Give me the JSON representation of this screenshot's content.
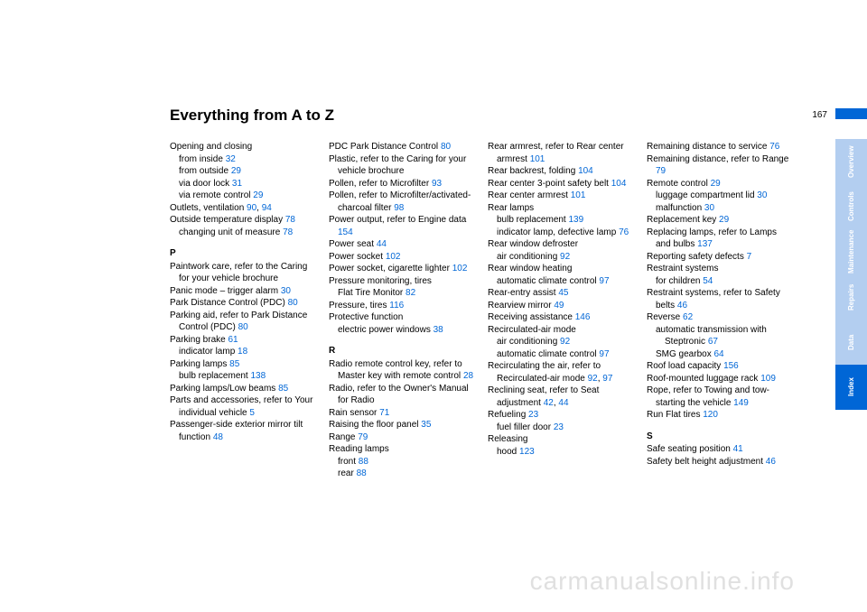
{
  "title": "Everything from A to Z",
  "page_number": "167",
  "watermark": "carmanualsonline.info",
  "link_color": "#0066d6",
  "tab_light": "#b3cef0",
  "tab_dark": "#0066d6",
  "tabs": [
    {
      "label": "Overview",
      "style": "light"
    },
    {
      "label": "Controls",
      "style": "light"
    },
    {
      "label": "Maintenance",
      "style": "light"
    },
    {
      "label": "Repairs",
      "style": "light"
    },
    {
      "label": "Data",
      "style": "light"
    },
    {
      "label": "Index",
      "style": "dark"
    }
  ],
  "entries": [
    {
      "type": "line",
      "text": "Opening and closing"
    },
    {
      "type": "sub",
      "text": "from inside",
      "pg": "32"
    },
    {
      "type": "sub",
      "text": "from outside",
      "pg": "29"
    },
    {
      "type": "sub",
      "text": "via door lock",
      "pg": "31"
    },
    {
      "type": "sub",
      "text": "via remote control",
      "pg": "29"
    },
    {
      "type": "line",
      "text": "Outlets, ventilation",
      "pg": "90, 94"
    },
    {
      "type": "line",
      "text": "Outside temperature display",
      "pg": "78"
    },
    {
      "type": "sub",
      "text": "changing unit of measure",
      "pg": "78"
    },
    {
      "type": "sect",
      "text": "P"
    },
    {
      "type": "line",
      "text": "Paintwork care, refer to the Caring for your vehicle brochure"
    },
    {
      "type": "line",
      "text": "Panic mode – trigger alarm",
      "pg": "30"
    },
    {
      "type": "line",
      "text": "Park Distance Control (PDC)",
      "pg": "80"
    },
    {
      "type": "line",
      "text": "Parking aid, refer to Park Distance Control (PDC)",
      "pg": "80"
    },
    {
      "type": "line",
      "text": "Parking brake",
      "pg": "61"
    },
    {
      "type": "sub",
      "text": "indicator lamp",
      "pg": "18"
    },
    {
      "type": "line",
      "text": "Parking lamps",
      "pg": "85"
    },
    {
      "type": "sub",
      "text": "bulb replacement",
      "pg": "138"
    },
    {
      "type": "line",
      "text": "Parking lamps/Low beams",
      "pg": "85"
    },
    {
      "type": "line",
      "text": "Parts and accessories, refer to Your individual vehicle",
      "pg": "5"
    },
    {
      "type": "line",
      "text": "Passenger-side exterior mirror tilt function",
      "pg": "48"
    },
    {
      "type": "break"
    },
    {
      "type": "line",
      "text": "PDC Park Distance Control",
      "pg": "80"
    },
    {
      "type": "line",
      "text": "Plastic, refer to the Caring for your vehicle brochure"
    },
    {
      "type": "line",
      "text": "Pollen, refer to Microfilter",
      "pg": "93"
    },
    {
      "type": "line",
      "text": "Pollen, refer to Microfilter/activated-charcoal filter",
      "pg": "98"
    },
    {
      "type": "line",
      "text": "Power output, refer to Engine data",
      "pg": "154"
    },
    {
      "type": "line",
      "text": "Power seat",
      "pg": "44"
    },
    {
      "type": "line",
      "text": "Power socket",
      "pg": "102"
    },
    {
      "type": "line",
      "text": "Power socket, cigarette lighter",
      "pg": "102"
    },
    {
      "type": "line",
      "text": "Pressure monitoring, tires"
    },
    {
      "type": "sub",
      "text": "Flat Tire Monitor",
      "pg": "82"
    },
    {
      "type": "line",
      "text": "Pressure, tires",
      "pg": "116"
    },
    {
      "type": "line",
      "text": "Protective function"
    },
    {
      "type": "sub",
      "text": "electric power windows",
      "pg": "38"
    },
    {
      "type": "sect",
      "text": "R"
    },
    {
      "type": "line",
      "text": "Radio remote control key, refer to Master key with remote control",
      "pg": "28"
    },
    {
      "type": "line",
      "text": "Radio, refer to the Owner's Manual for Radio"
    },
    {
      "type": "line",
      "text": "Rain sensor",
      "pg": "71"
    },
    {
      "type": "line",
      "text": "Raising the floor panel",
      "pg": "35"
    },
    {
      "type": "line",
      "text": "Range",
      "pg": "79"
    },
    {
      "type": "line",
      "text": "Reading lamps"
    },
    {
      "type": "sub",
      "text": "front",
      "pg": "88"
    },
    {
      "type": "sub",
      "text": "rear",
      "pg": "88"
    },
    {
      "type": "break"
    },
    {
      "type": "line",
      "text": "Rear armrest, refer to Rear center armrest",
      "pg": "101"
    },
    {
      "type": "line",
      "text": "Rear backrest, folding",
      "pg": "104"
    },
    {
      "type": "line",
      "text": "Rear center 3-point safety belt",
      "pg": "104"
    },
    {
      "type": "line",
      "text": "Rear center armrest",
      "pg": "101"
    },
    {
      "type": "line",
      "text": "Rear lamps"
    },
    {
      "type": "sub",
      "text": "bulb replacement",
      "pg": "139"
    },
    {
      "type": "sub",
      "text": "indicator lamp, defective lamp",
      "pg": "76"
    },
    {
      "type": "line",
      "text": "Rear window defroster"
    },
    {
      "type": "sub",
      "text": "air conditioning",
      "pg": "92"
    },
    {
      "type": "line",
      "text": "Rear window heating"
    },
    {
      "type": "sub",
      "text": "automatic climate control",
      "pg": "97"
    },
    {
      "type": "line",
      "text": "Rear-entry assist",
      "pg": "45"
    },
    {
      "type": "line",
      "text": "Rearview mirror",
      "pg": "49"
    },
    {
      "type": "line",
      "text": "Receiving assistance",
      "pg": "146"
    },
    {
      "type": "line",
      "text": "Recirculated-air mode"
    },
    {
      "type": "sub",
      "text": "air conditioning",
      "pg": "92"
    },
    {
      "type": "sub",
      "text": "automatic climate control",
      "pg": "97"
    },
    {
      "type": "line",
      "text": "Recirculating the air, refer to Recirculated-air mode",
      "pg": "92, 97"
    },
    {
      "type": "line",
      "text": "Reclining seat, refer to Seat adjustment",
      "pg": "42, 44"
    },
    {
      "type": "line",
      "text": "Refueling",
      "pg": "23"
    },
    {
      "type": "sub",
      "text": "fuel filler door",
      "pg": "23"
    },
    {
      "type": "line",
      "text": "Releasing"
    },
    {
      "type": "sub",
      "text": "hood",
      "pg": "123"
    },
    {
      "type": "break"
    },
    {
      "type": "line",
      "text": "Remaining distance to service",
      "pg": "76"
    },
    {
      "type": "line",
      "text": "Remaining distance, refer to Range",
      "pg": "79"
    },
    {
      "type": "line",
      "text": "Remote control",
      "pg": "29"
    },
    {
      "type": "sub",
      "text": "luggage compartment lid",
      "pg": "30"
    },
    {
      "type": "sub",
      "text": "malfunction",
      "pg": "30"
    },
    {
      "type": "line",
      "text": "Replacement key",
      "pg": "29"
    },
    {
      "type": "line",
      "text": "Replacing lamps, refer to Lamps and bulbs",
      "pg": "137"
    },
    {
      "type": "line",
      "text": "Reporting safety defects",
      "pg": "7"
    },
    {
      "type": "line",
      "text": "Restraint systems"
    },
    {
      "type": "sub",
      "text": "for children",
      "pg": "54"
    },
    {
      "type": "line",
      "text": "Restraint systems, refer to Safety belts",
      "pg": "46"
    },
    {
      "type": "line",
      "text": "Reverse",
      "pg": "62"
    },
    {
      "type": "sub",
      "text": "automatic transmission with Steptronic",
      "pg": "67"
    },
    {
      "type": "sub",
      "text": "SMG gearbox",
      "pg": "64"
    },
    {
      "type": "line",
      "text": "Roof load capacity",
      "pg": "156"
    },
    {
      "type": "line",
      "text": "Roof-mounted luggage rack",
      "pg": "109"
    },
    {
      "type": "line",
      "text": "Rope, refer to Towing and tow-starting the vehicle",
      "pg": "149"
    },
    {
      "type": "line",
      "text": "Run Flat tires",
      "pg": "120"
    },
    {
      "type": "sect",
      "text": "S"
    },
    {
      "type": "line",
      "text": "Safe seating position",
      "pg": "41"
    },
    {
      "type": "line",
      "text": "Safety belt height adjustment",
      "pg": "46"
    }
  ]
}
